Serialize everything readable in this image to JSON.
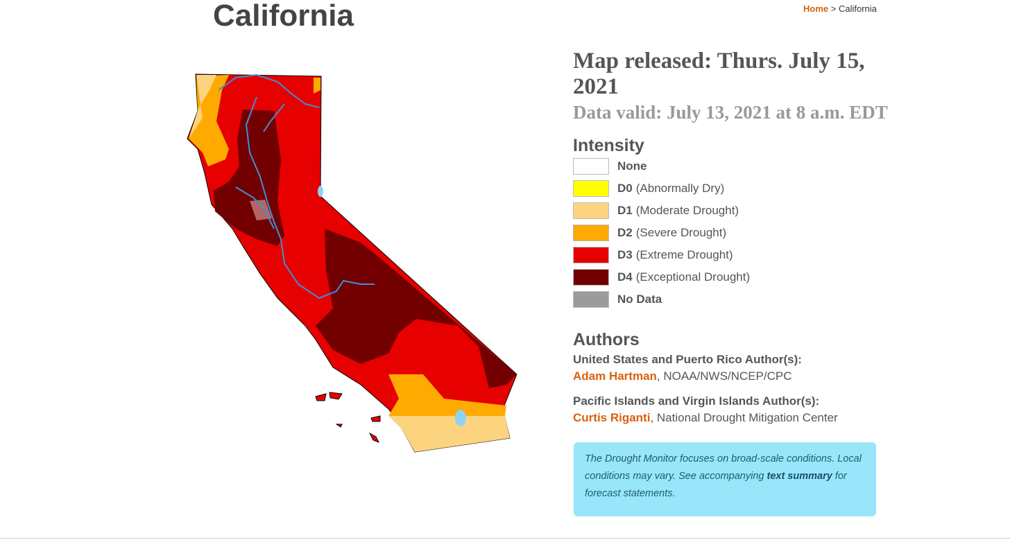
{
  "header": {
    "title": "California"
  },
  "breadcrumb": {
    "home": "Home",
    "separator": ">",
    "current": "California"
  },
  "release": {
    "map_released": "Map released: Thurs. July 15, 2021",
    "data_valid": "Data valid: July 13, 2021 at 8 a.m. EDT"
  },
  "legend": {
    "title": "Intensity",
    "items": [
      {
        "code": "None",
        "color": "#ffffff"
      },
      {
        "code": "D0",
        "label": "(Abnormally Dry)",
        "color": "#ffff00"
      },
      {
        "code": "D1",
        "label": "(Moderate Drought)",
        "color": "#fcd37f"
      },
      {
        "code": "D2",
        "label": "(Severe Drought)",
        "color": "#ffaa00"
      },
      {
        "code": "D3",
        "label": "(Extreme Drought)",
        "color": "#e60000"
      },
      {
        "code": "D4",
        "label": "(Exceptional Drought)",
        "color": "#730000"
      },
      {
        "code": "No Data",
        "color": "#9b9b9b"
      }
    ]
  },
  "authors": {
    "title": "Authors",
    "groups": [
      {
        "heading": "United States and Puerto Rico Author(s):",
        "name": "Adam Hartman",
        "affiliation": ", NOAA/NWS/NCEP/CPC"
      },
      {
        "heading": "Pacific Islands and Virgin Islands Author(s):",
        "name": "Curtis Riganti",
        "affiliation": ", National Drought Mitigation Center"
      }
    ]
  },
  "note": {
    "before": "The Drought Monitor focuses on broad-scale conditions. Local conditions may vary. See accompanying ",
    "link": "text summary",
    "after": " for forecast statements."
  }
}
